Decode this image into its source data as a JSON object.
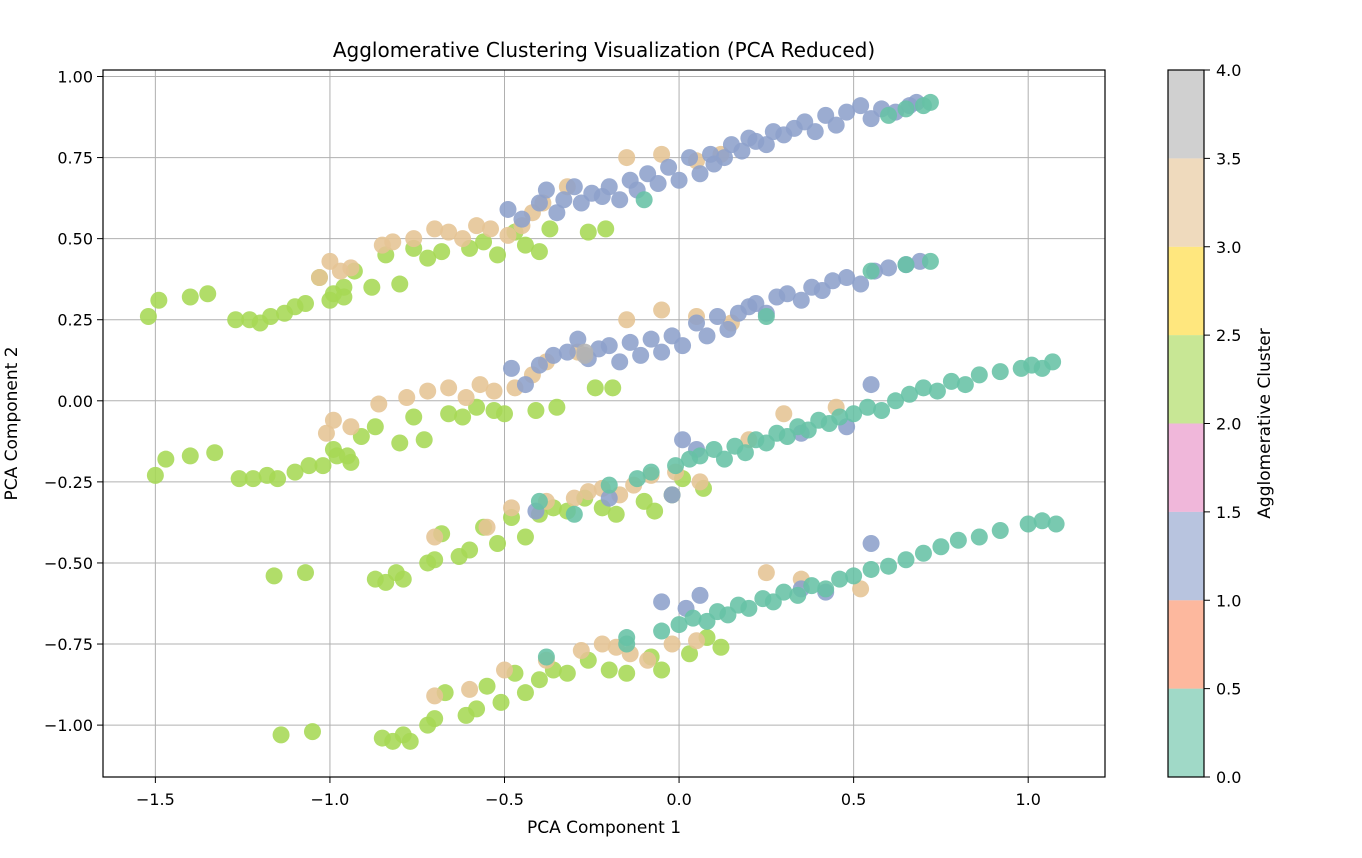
{
  "chart_data": {
    "type": "scatter",
    "title": "Agglomerative Clustering Visualization (PCA Reduced)",
    "xlabel": "PCA Component 1",
    "ylabel": "PCA Component 2",
    "xlim": [
      -1.65,
      1.22
    ],
    "ylim": [
      -1.16,
      1.02
    ],
    "xticks": [
      -1.5,
      -1.0,
      -0.5,
      0.0,
      0.5,
      1.0
    ],
    "yticks": [
      -1.0,
      -0.75,
      -0.5,
      -0.25,
      0.0,
      0.25,
      0.5,
      0.75,
      1.0
    ],
    "xtick_labels": [
      "−1.5",
      "−1.0",
      "−0.5",
      "0.0",
      "0.5",
      "1.0"
    ],
    "ytick_labels": [
      "−1.00",
      "−0.75",
      "−0.50",
      "−0.25",
      "0.00",
      "0.25",
      "0.50",
      "0.75",
      "1.00"
    ],
    "grid": true,
    "colorbar": {
      "label": "Agglomerative Cluster",
      "range": [
        0.0,
        4.0
      ],
      "ticks": [
        0.0,
        0.5,
        1.0,
        1.5,
        2.0,
        2.5,
        3.0,
        3.5,
        4.0
      ],
      "tick_labels": [
        "0.0",
        "0.5",
        "1.0",
        "1.5",
        "2.0",
        "2.5",
        "3.0",
        "3.5",
        "4.0"
      ],
      "colormap": "Set2",
      "band_colors": [
        "#66c2a5",
        "#fc8d62",
        "#8da0cb",
        "#e78ac3",
        "#a6d854",
        "#ffd92f",
        "#e5c494",
        "#b3b3b3"
      ]
    },
    "cluster_colors": {
      "0": "#66c2a5",
      "1": "#8da0cb",
      "2": "#a6d854",
      "3": "#e5c494",
      "4": "#b3b3b3"
    },
    "series": [
      {
        "x": [
          -1.52,
          -1.49,
          -1.4,
          -1.35,
          -1.27,
          -1.23,
          -1.2,
          -1.17,
          -1.13,
          -1.1,
          -1.07,
          -1.03,
          -0.99,
          -0.96,
          -0.93,
          -0.88,
          -0.84,
          -0.8,
          -0.76,
          -0.72,
          -0.68,
          -0.6,
          -0.56,
          -0.52,
          -0.47,
          -0.44,
          -0.4,
          -0.37,
          -0.26,
          -0.21,
          -1.0,
          -0.96
        ],
        "y": [
          0.26,
          0.31,
          0.32,
          0.33,
          0.25,
          0.25,
          0.24,
          0.26,
          0.27,
          0.29,
          0.3,
          0.38,
          0.33,
          0.35,
          0.4,
          0.35,
          0.45,
          0.36,
          0.47,
          0.44,
          0.46,
          0.47,
          0.49,
          0.45,
          0.52,
          0.48,
          0.46,
          0.53,
          0.52,
          0.53,
          0.31,
          0.32
        ],
        "cluster": 2
      },
      {
        "x": [
          -1.5,
          -1.47,
          -1.4,
          -1.33,
          -1.26,
          -1.22,
          -1.18,
          -1.15,
          -1.1,
          -1.06,
          -1.02,
          -0.99,
          -0.95,
          -0.91,
          -0.87,
          -0.8,
          -0.76,
          -0.73,
          -0.66,
          -0.62,
          -0.58,
          -0.53,
          -0.5,
          -0.41,
          -0.35,
          -0.24,
          -0.19,
          -0.98,
          -0.94
        ],
        "y": [
          -0.23,
          -0.18,
          -0.17,
          -0.16,
          -0.24,
          -0.24,
          -0.23,
          -0.24,
          -0.22,
          -0.2,
          -0.2,
          -0.15,
          -0.17,
          -0.11,
          -0.08,
          -0.13,
          -0.05,
          -0.12,
          -0.04,
          -0.05,
          -0.02,
          -0.03,
          -0.04,
          -0.03,
          -0.02,
          0.04,
          0.04,
          -0.17,
          -0.19
        ],
        "cluster": 2
      },
      {
        "x": [
          -1.16,
          -1.07,
          -0.87,
          -0.84,
          -0.81,
          -0.79,
          -0.72,
          -0.7,
          -0.68,
          -0.63,
          -0.6,
          -0.56,
          -0.52,
          -0.48,
          -0.44,
          -0.4,
          -0.36,
          -0.32,
          -0.27,
          -0.22,
          -0.18,
          -0.1,
          -0.07,
          -0.02,
          0.01,
          0.07
        ],
        "y": [
          -0.54,
          -0.53,
          -0.55,
          -0.56,
          -0.53,
          -0.55,
          -0.5,
          -0.49,
          -0.41,
          -0.48,
          -0.46,
          -0.39,
          -0.44,
          -0.36,
          -0.42,
          -0.35,
          -0.33,
          -0.34,
          -0.3,
          -0.33,
          -0.35,
          -0.31,
          -0.34,
          -0.29,
          -0.24,
          -0.27
        ],
        "cluster": 2
      },
      {
        "x": [
          -1.14,
          -1.05,
          -0.85,
          -0.82,
          -0.79,
          -0.77,
          -0.72,
          -0.7,
          -0.67,
          -0.61,
          -0.58,
          -0.55,
          -0.51,
          -0.47,
          -0.44,
          -0.4,
          -0.36,
          -0.32,
          -0.26,
          -0.2,
          -0.15,
          -0.08,
          -0.05,
          0.03,
          0.08,
          0.12
        ],
        "y": [
          -1.03,
          -1.02,
          -1.04,
          -1.05,
          -1.03,
          -1.05,
          -1.0,
          -0.98,
          -0.9,
          -0.97,
          -0.95,
          -0.88,
          -0.93,
          -0.84,
          -0.9,
          -0.86,
          -0.83,
          -0.84,
          -0.8,
          -0.83,
          -0.84,
          -0.79,
          -0.83,
          -0.78,
          -0.73,
          -0.76
        ],
        "cluster": 2
      },
      {
        "x": [
          -1.03,
          -1.0,
          -0.97,
          -0.94,
          -0.85,
          -0.82,
          -0.76,
          -0.7,
          -0.66,
          -0.62,
          -0.58,
          -0.54,
          -0.49,
          -0.45,
          -0.42,
          -0.39,
          -0.32,
          -0.15,
          -0.05,
          0.05,
          0.12,
          -1.01,
          -0.99,
          -0.94,
          -0.86,
          -0.78,
          -0.72,
          -0.66,
          -0.61,
          -0.57,
          -0.53,
          -0.47,
          -0.42,
          -0.38,
          -0.29,
          -0.15,
          -0.05,
          0.05,
          0.15,
          -0.7,
          -0.55,
          -0.48,
          -0.38,
          -0.3,
          -0.26,
          -0.22,
          -0.17,
          -0.13,
          -0.08,
          -0.01,
          0.06,
          0.2,
          0.3,
          0.45,
          -0.7,
          -0.6,
          -0.5,
          -0.38,
          -0.28,
          -0.22,
          -0.18,
          -0.14,
          -0.09,
          -0.02,
          0.05,
          0.25,
          0.35,
          0.52
        ],
        "y": [
          0.38,
          0.43,
          0.4,
          0.41,
          0.48,
          0.49,
          0.5,
          0.53,
          0.52,
          0.5,
          0.54,
          0.53,
          0.51,
          0.54,
          0.58,
          0.61,
          0.66,
          0.75,
          0.76,
          0.74,
          0.76,
          -0.1,
          -0.06,
          -0.08,
          -0.01,
          0.01,
          0.03,
          0.04,
          0.01,
          0.05,
          0.03,
          0.04,
          0.08,
          0.12,
          0.15,
          0.25,
          0.28,
          0.26,
          0.24,
          -0.42,
          -0.39,
          -0.33,
          -0.31,
          -0.3,
          -0.28,
          -0.27,
          -0.29,
          -0.26,
          -0.23,
          -0.22,
          -0.25,
          -0.12,
          -0.04,
          -0.02,
          -0.91,
          -0.89,
          -0.83,
          -0.8,
          -0.77,
          -0.75,
          -0.76,
          -0.78,
          -0.8,
          -0.75,
          -0.74,
          -0.53,
          -0.55,
          -0.58
        ],
        "cluster": 3
      },
      {
        "x": [
          -0.49,
          -0.45,
          -0.4,
          -0.38,
          -0.35,
          -0.33,
          -0.3,
          -0.28,
          -0.25,
          -0.22,
          -0.2,
          -0.17,
          -0.14,
          -0.12,
          -0.09,
          -0.06,
          -0.03,
          0.0,
          0.03,
          0.06,
          0.09,
          0.1,
          0.13,
          0.15,
          0.18,
          0.2,
          0.22,
          0.25,
          0.27,
          0.3,
          0.33,
          0.36,
          0.39,
          0.42,
          0.45,
          0.48,
          0.52,
          0.55,
          0.58,
          0.62,
          0.66,
          0.68,
          -0.48,
          -0.44,
          -0.4,
          -0.36,
          -0.32,
          -0.29,
          -0.26,
          -0.23,
          -0.2,
          -0.17,
          -0.14,
          -0.11,
          -0.08,
          -0.05,
          -0.02,
          0.01,
          0.05,
          0.08,
          0.11,
          0.14,
          0.17,
          0.2,
          0.22,
          0.25,
          0.28,
          0.31,
          0.35,
          0.38,
          0.41,
          0.44,
          0.48,
          0.52,
          0.56,
          0.6,
          0.65,
          0.69,
          -0.41,
          -0.2,
          -0.02,
          0.01,
          0.05,
          0.35,
          0.48,
          0.55,
          -0.05,
          0.02,
          0.06,
          0.35,
          0.42,
          0.55
        ],
        "y": [
          0.59,
          0.56,
          0.61,
          0.65,
          0.58,
          0.62,
          0.66,
          0.61,
          0.64,
          0.63,
          0.66,
          0.62,
          0.68,
          0.65,
          0.7,
          0.67,
          0.72,
          0.68,
          0.75,
          0.7,
          0.76,
          0.73,
          0.75,
          0.79,
          0.77,
          0.81,
          0.8,
          0.79,
          0.83,
          0.82,
          0.84,
          0.86,
          0.83,
          0.88,
          0.85,
          0.89,
          0.91,
          0.87,
          0.9,
          0.89,
          0.91,
          0.92,
          0.1,
          0.05,
          0.11,
          0.14,
          0.15,
          0.19,
          0.13,
          0.16,
          0.17,
          0.12,
          0.18,
          0.14,
          0.19,
          0.15,
          0.2,
          0.17,
          0.24,
          0.2,
          0.26,
          0.22,
          0.27,
          0.29,
          0.3,
          0.27,
          0.32,
          0.33,
          0.31,
          0.35,
          0.34,
          0.37,
          0.38,
          0.36,
          0.4,
          0.41,
          0.42,
          0.43,
          -0.34,
          -0.3,
          -0.29,
          -0.12,
          -0.15,
          -0.1,
          -0.08,
          0.05,
          -0.62,
          -0.64,
          -0.6,
          -0.58,
          -0.59,
          -0.44
        ],
        "cluster": 1
      },
      {
        "x": [
          0.6,
          0.65,
          0.7,
          0.72,
          -0.1,
          0.25,
          0.55,
          0.65,
          0.72,
          -0.12,
          -0.08,
          -0.01,
          0.03,
          0.06,
          0.1,
          0.13,
          0.16,
          0.19,
          0.22,
          0.25,
          0.28,
          0.31,
          0.34,
          0.37,
          0.4,
          0.43,
          0.46,
          0.5,
          0.54,
          0.58,
          0.62,
          0.66,
          0.7,
          0.74,
          0.78,
          0.82,
          0.86,
          0.92,
          0.98,
          1.01,
          1.04,
          1.07,
          -0.4,
          -0.2,
          -0.3,
          -0.15,
          -0.05,
          0.0,
          0.04,
          0.08,
          0.11,
          0.14,
          0.17,
          0.2,
          0.24,
          0.27,
          0.3,
          0.34,
          0.38,
          0.42,
          0.46,
          0.5,
          0.55,
          0.6,
          0.65,
          0.7,
          0.75,
          0.8,
          0.86,
          0.92,
          1.0,
          1.04,
          1.08,
          -0.38,
          -0.15
        ],
        "y": [
          0.88,
          0.9,
          0.91,
          0.92,
          0.62,
          0.26,
          0.4,
          0.42,
          0.43,
          -0.24,
          -0.22,
          -0.2,
          -0.18,
          -0.17,
          -0.15,
          -0.18,
          -0.14,
          -0.16,
          -0.12,
          -0.13,
          -0.1,
          -0.11,
          -0.08,
          -0.09,
          -0.06,
          -0.07,
          -0.05,
          -0.04,
          -0.02,
          -0.03,
          0.0,
          0.02,
          0.04,
          0.03,
          0.06,
          0.05,
          0.08,
          0.09,
          0.1,
          0.11,
          0.1,
          0.12,
          -0.31,
          -0.26,
          -0.35,
          -0.73,
          -0.71,
          -0.69,
          -0.67,
          -0.68,
          -0.65,
          -0.66,
          -0.63,
          -0.64,
          -0.61,
          -0.62,
          -0.59,
          -0.6,
          -0.57,
          -0.58,
          -0.55,
          -0.54,
          -0.52,
          -0.51,
          -0.49,
          -0.47,
          -0.45,
          -0.43,
          -0.42,
          -0.4,
          -0.38,
          -0.37,
          -0.38,
          -0.79,
          -0.75
        ],
        "cluster": 0
      },
      {
        "x": [
          -0.27,
          -0.27
        ],
        "y": [
          0.15,
          0.14
        ],
        "cluster": 4
      }
    ]
  }
}
